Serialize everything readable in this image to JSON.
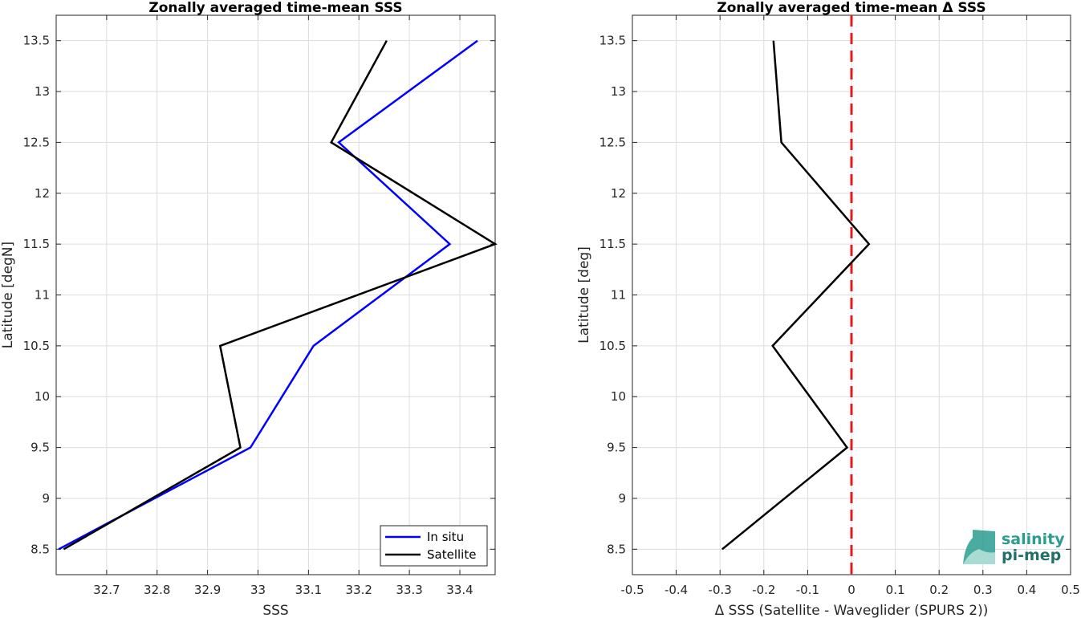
{
  "chart_data": [
    {
      "type": "line",
      "title": "Zonally averaged time-mean SSS",
      "xlabel": "SSS",
      "ylabel": "Latitude [degN]",
      "xlim": [
        32.6,
        33.47
      ],
      "ylim": [
        8.25,
        13.75
      ],
      "xticks": [
        32.7,
        32.8,
        32.9,
        33,
        33.1,
        33.2,
        33.3,
        33.4
      ],
      "xtick_labels": [
        "32.7",
        "32.8",
        "32.9",
        "33",
        "33.1",
        "33.2",
        "33.3",
        "33.4"
      ],
      "yticks": [
        8.5,
        9,
        9.5,
        10,
        10.5,
        11,
        11.5,
        12,
        12.5,
        13,
        13.5
      ],
      "ytick_labels": [
        "8.5",
        "9",
        "9.5",
        "10",
        "10.5",
        "11",
        "11.5",
        "12",
        "12.5",
        "13",
        "13.5"
      ],
      "grid": true,
      "legend": "bottom-right",
      "series": [
        {
          "name": "In situ",
          "color": "#0000ff",
          "x": [
            32.605,
            32.985,
            33.11,
            33.38,
            33.16,
            33.435
          ],
          "y": [
            8.5,
            9.5,
            10.5,
            11.5,
            12.5,
            13.5
          ]
        },
        {
          "name": "Satellite",
          "color": "#000000",
          "x": [
            32.615,
            32.965,
            32.925,
            33.47,
            33.145,
            33.255
          ],
          "y": [
            8.5,
            9.5,
            10.5,
            11.5,
            12.5,
            13.5
          ]
        }
      ]
    },
    {
      "type": "line",
      "title": "Zonally averaged time-mean Δ SSS",
      "xlabel": "Δ SSS (Satellite - Waveglider (SPURS 2))",
      "ylabel": "Latitude [deg]",
      "xlim": [
        -0.5,
        0.5
      ],
      "ylim": [
        8.25,
        13.75
      ],
      "xticks": [
        -0.5,
        -0.4,
        -0.3,
        -0.2,
        -0.1,
        0,
        0.1,
        0.2,
        0.3,
        0.4,
        0.5
      ],
      "xtick_labels": [
        "-0.5",
        "-0.4",
        "-0.3",
        "-0.2",
        "-0.1",
        "0",
        "0.1",
        "0.2",
        "0.3",
        "0.4",
        "0.5"
      ],
      "yticks": [
        8.5,
        9,
        9.5,
        10,
        10.5,
        11,
        11.5,
        12,
        12.5,
        13,
        13.5
      ],
      "ytick_labels": [
        "8.5",
        "9",
        "9.5",
        "10",
        "10.5",
        "11",
        "11.5",
        "12",
        "12.5",
        "13",
        "13.5"
      ],
      "grid": true,
      "reference_line": {
        "x": 0,
        "color": "#e41a1c",
        "style": "dashed"
      },
      "series": [
        {
          "color": "#000000",
          "x": [
            -0.295,
            -0.01,
            -0.18,
            0.04,
            -0.16,
            -0.178
          ],
          "y": [
            8.5,
            9.5,
            10.5,
            11.5,
            12.5,
            13.5
          ]
        }
      ]
    }
  ],
  "logo": {
    "line1": "salinity",
    "line2": "pi-mep",
    "color": "#2a9d8f"
  }
}
